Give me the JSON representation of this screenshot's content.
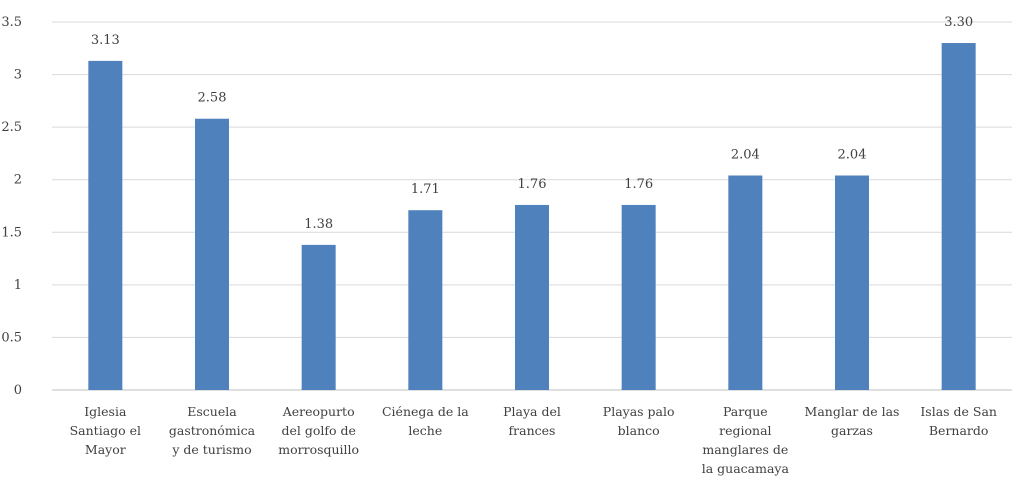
{
  "chart_data": {
    "type": "bar",
    "title": "",
    "xlabel": "",
    "ylabel": "",
    "ylim": [
      0,
      3.5
    ],
    "yticks": [
      "0",
      "0.5",
      "1",
      "1.5",
      "2",
      "2.5",
      "3",
      "3.5"
    ],
    "grid": true,
    "legend": "none",
    "bar_color": "#4f81bd",
    "categories": [
      [
        "Iglesia",
        "Santiago el",
        "Mayor"
      ],
      [
        "Escuela",
        "gastronómica",
        "y de turismo"
      ],
      [
        "Aereopurto",
        "del golfo de",
        "morrosquillo"
      ],
      [
        "Ciénega de la",
        "leche"
      ],
      [
        "Playa del",
        "frances"
      ],
      [
        "Playas palo",
        "blanco"
      ],
      [
        "Parque",
        "regional",
        "manglares de",
        "la guacamaya"
      ],
      [
        "Manglar de las",
        "garzas"
      ],
      [
        "Islas de San",
        "Bernardo"
      ]
    ],
    "values": [
      3.13,
      2.58,
      1.38,
      1.71,
      1.76,
      1.76,
      2.04,
      2.04,
      3.3
    ],
    "data_labels": [
      "3.13",
      "2.58",
      "1.38",
      "1.71",
      "1.76",
      "1.76",
      "2.04",
      "2.04",
      "3.30"
    ]
  }
}
